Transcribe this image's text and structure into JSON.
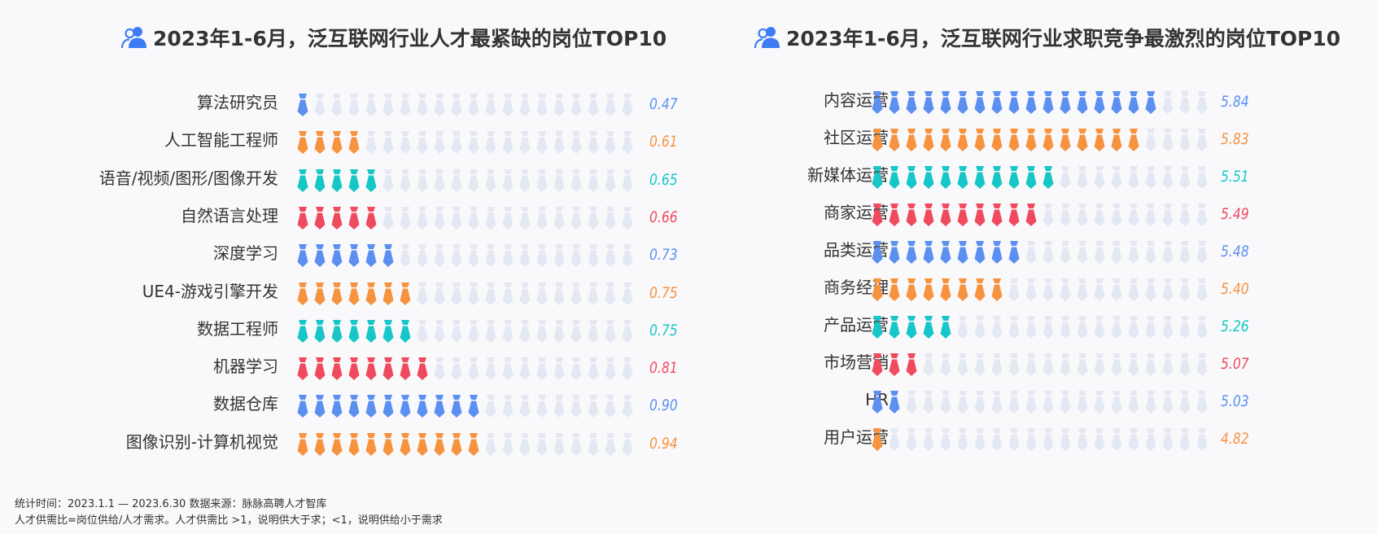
{
  "colors": {
    "blue": "#5b8ff0",
    "orange": "#f7923e",
    "teal": "#17c6c6",
    "red": "#f04a5e",
    "empty": "#e3e8f3",
    "title_icon": "#3d7cf5"
  },
  "icon_count": 20,
  "icon_names": [
    "people-icon",
    "necktie-icon"
  ],
  "chart_data": [
    {
      "type": "bar",
      "title": "2023年1-6月，泛互联网行业人才最紧缺的岗位TOP10",
      "unit_per_icon": "",
      "categories": [
        "算法研究员",
        "人工智能工程师",
        "语音/视频/图形/图像开发",
        "自然语言处理",
        "深度学习",
        "UE4-游戏引擎开发",
        "数据工程师",
        "机器学习",
        "数据仓库",
        "图像识别-计算机视觉"
      ],
      "values": [
        0.47,
        0.61,
        0.65,
        0.66,
        0.73,
        0.75,
        0.75,
        0.81,
        0.9,
        0.94
      ],
      "value_labels": [
        "0.47",
        "0.61",
        "0.65",
        "0.66",
        "0.73",
        "0.75",
        "0.75",
        "0.81",
        "0.90",
        "0.94"
      ],
      "filled_icons": [
        1,
        4,
        5,
        5,
        6,
        7,
        7,
        8,
        11,
        11
      ],
      "colors": [
        "blue",
        "orange",
        "teal",
        "red",
        "blue",
        "orange",
        "teal",
        "red",
        "blue",
        "orange"
      ]
    },
    {
      "type": "bar",
      "title": "2023年1-6月，泛互联网行业求职竞争最激烈的岗位TOP10",
      "categories": [
        "内容运营",
        "社区运营",
        "新媒体运营",
        "商家运营",
        "品类运营",
        "商务经理",
        "产品运营",
        "市场营销",
        "HR",
        "用户运营"
      ],
      "values": [
        5.84,
        5.83,
        5.51,
        5.49,
        5.48,
        5.4,
        5.26,
        5.07,
        5.03,
        4.82
      ],
      "value_labels": [
        "5.84",
        "5.83",
        "5.51",
        "5.49",
        "5.48",
        "5.40",
        "5.26",
        "5.07",
        "5.03",
        "4.82"
      ],
      "filled_icons": [
        17,
        16,
        11,
        10,
        9,
        8,
        5,
        3,
        2,
        1
      ],
      "colors": [
        "blue",
        "orange",
        "teal",
        "red",
        "blue",
        "orange",
        "teal",
        "red",
        "blue",
        "orange"
      ]
    }
  ],
  "footnotes": {
    "line1": "统计时间：2023.1.1 — 2023.6.30   数据来源：脉脉高聘人才智库",
    "line2": "人才供需比=岗位供给/人才需求。人才供需比 >1，说明供大于求；<1，说明供给小于需求"
  }
}
